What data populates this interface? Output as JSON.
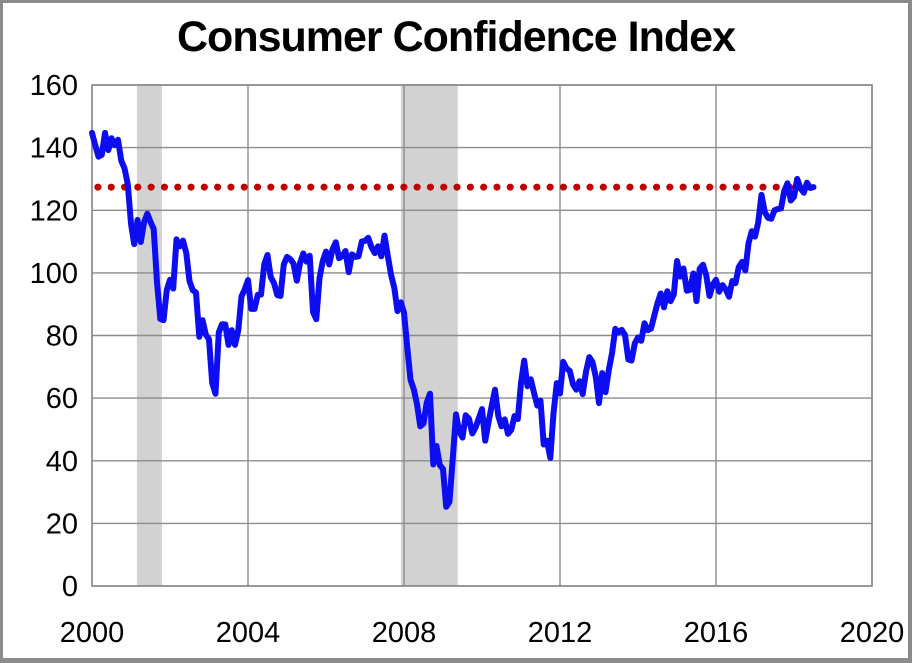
{
  "chart_data": {
    "type": "line",
    "title": "Consumer Confidence Index",
    "xlabel": "",
    "ylabel": "",
    "xlim": [
      2000,
      2020
    ],
    "ylim": [
      0,
      160
    ],
    "x_ticks": [
      2000,
      2004,
      2008,
      2012,
      2016,
      2020
    ],
    "y_ticks": [
      0,
      20,
      40,
      60,
      80,
      100,
      120,
      140,
      160
    ],
    "grid": true,
    "grid_color": "#8c8c8c",
    "background": "#ffffff",
    "frame_border_color": "#8b8b8b",
    "band_color": "#d2d2d2",
    "recession_bands": [
      {
        "x_start": 2001.15,
        "x_end": 2001.79
      },
      {
        "x_start": 2007.92,
        "x_end": 2009.38
      }
    ],
    "reference_line": {
      "value": 127.4,
      "color": "#c00000",
      "style": "dotted",
      "x_start": 2000.15,
      "x_end": 2018.2
    },
    "series": [
      {
        "name": "Consumer Confidence Index (monthly)",
        "color": "#0d0df2",
        "interval": "monthly",
        "x_start": 2000.0,
        "values": [
          144.7,
          140.8,
          137.1,
          137.7,
          144.7,
          139.2,
          143.0,
          140.8,
          142.5,
          135.8,
          133.4,
          128.3,
          115.7,
          109.2,
          116.9,
          109.9,
          116.1,
          118.9,
          116.3,
          114.0,
          97.0,
          85.3,
          84.9,
          94.6,
          97.8,
          95.0,
          110.7,
          108.5,
          110.3,
          106.3,
          97.4,
          94.5,
          93.7,
          79.6,
          84.9,
          80.3,
          78.8,
          64.8,
          61.4,
          81.0,
          83.6,
          83.5,
          77.0,
          81.7,
          77.0,
          81.7,
          92.5,
          94.8,
          97.7,
          88.5,
          88.5,
          93.0,
          93.1,
          102.8,
          105.7,
          98.7,
          96.7,
          92.9,
          92.6,
          102.7,
          105.1,
          104.4,
          103.0,
          97.5,
          103.1,
          106.2,
          103.6,
          105.5,
          87.5,
          85.2,
          98.3,
          103.8,
          106.8,
          102.7,
          107.5,
          109.8,
          104.7,
          105.4,
          107.0,
          100.2,
          105.9,
          105.1,
          105.3,
          110.0,
          110.2,
          111.2,
          108.2,
          106.3,
          108.5,
          105.3,
          111.9,
          105.6,
          99.5,
          95.2,
          87.8,
          90.6,
          87.3,
          76.4,
          65.9,
          62.8,
          58.1,
          51.0,
          51.9,
          58.5,
          61.4,
          38.8,
          44.7,
          38.6,
          37.4,
          25.3,
          26.9,
          40.8,
          54.8,
          49.3,
          47.4,
          54.5,
          53.4,
          48.7,
          50.6,
          53.6,
          56.5,
          46.4,
          52.3,
          57.7,
          62.7,
          54.3,
          51.0,
          53.2,
          48.6,
          49.9,
          54.3,
          53.3,
          64.8,
          72.0,
          63.8,
          66.0,
          61.7,
          57.6,
          59.2,
          45.2,
          46.4,
          40.9,
          55.2,
          64.8,
          61.5,
          71.6,
          69.5,
          68.7,
          64.4,
          62.7,
          65.4,
          61.3,
          68.4,
          73.1,
          71.5,
          66.7,
          58.4,
          68.0,
          61.9,
          69.0,
          74.3,
          82.1,
          81.0,
          81.8,
          80.2,
          72.4,
          72.0,
          77.5,
          79.4,
          78.3,
          83.9,
          81.7,
          82.2,
          86.4,
          90.3,
          93.4,
          89.0,
          94.1,
          91.0,
          93.1,
          103.8,
          98.8,
          101.4,
          94.3,
          94.6,
          99.8,
          91.0,
          101.3,
          102.6,
          99.1,
          92.6,
          96.3,
          97.8,
          94.0,
          96.1,
          94.7,
          92.4,
          97.4,
          96.7,
          101.8,
          103.5,
          100.8,
          109.4,
          113.3,
          111.6,
          116.1,
          124.9,
          119.4,
          117.6,
          117.3,
          120.0,
          120.4,
          120.6,
          126.2,
          128.6,
          123.1,
          124.3,
          130.0,
          127.0,
          125.6,
          128.8,
          127.1,
          127.4
        ]
      }
    ],
    "legend": null
  }
}
